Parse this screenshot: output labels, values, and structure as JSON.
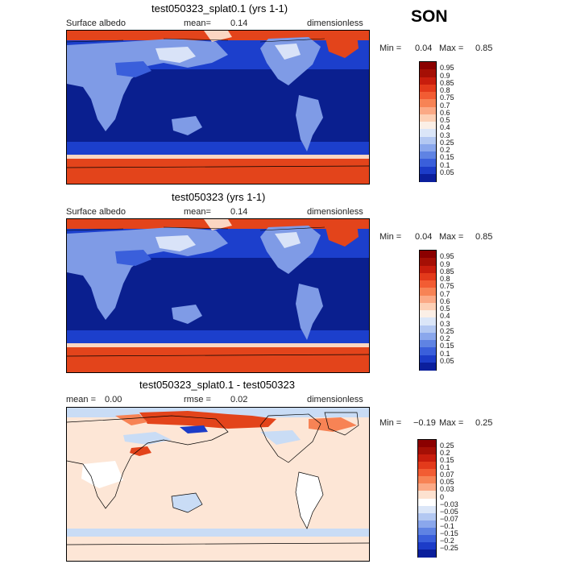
{
  "season": "SON",
  "colors": {
    "ocean_dark": "#0a1f8f",
    "ocean_mid": "#1c3fcc",
    "land_light": "#7f9be6",
    "ice_red": "#e3441b",
    "ice_pale": "#fbd6c2",
    "diff_bg": "#fde6d6",
    "diff_blue": "#c9dcf5"
  },
  "panels": [
    {
      "id": "panel-1",
      "title": "test050323_splat0.1 (yrs 1-1)",
      "left_label": "Surface albedo",
      "mean_label": "mean=",
      "mean_value": "0.14",
      "units": "dimensionless",
      "min_label": "Min =",
      "min_value": "0.04",
      "max_label": "Max =",
      "max_value": "0.85",
      "colorbar": {
        "ticks": [
          "0.95",
          "0.9",
          "0.85",
          "0.8",
          "0.75",
          "0.7",
          "0.6",
          "0.5",
          "0.4",
          "0.3",
          "0.25",
          "0.2",
          "0.15",
          "0.1",
          "0.05"
        ],
        "colors": [
          "#8b0000",
          "#a50f05",
          "#c81d0d",
          "#e33a1b",
          "#f25c33",
          "#f78355",
          "#fba985",
          "#fdd0b5",
          "#fbefe6",
          "#dbe6f8",
          "#b3c8f2",
          "#8aa7ec",
          "#5f83e3",
          "#3a5fdb",
          "#1c3cc8",
          "#0b1f9c"
        ]
      }
    },
    {
      "id": "panel-2",
      "title": "test050323 (yrs 1-1)",
      "left_label": "Surface albedo",
      "mean_label": "mean=",
      "mean_value": "0.14",
      "units": "dimensionless",
      "min_label": "Min =",
      "min_value": "0.04",
      "max_label": "Max =",
      "max_value": "0.85",
      "colorbar": {
        "ticks": [
          "0.95",
          "0.9",
          "0.85",
          "0.8",
          "0.75",
          "0.7",
          "0.6",
          "0.5",
          "0.4",
          "0.3",
          "0.25",
          "0.2",
          "0.15",
          "0.1",
          "0.05"
        ],
        "colors": [
          "#8b0000",
          "#a50f05",
          "#c81d0d",
          "#e33a1b",
          "#f25c33",
          "#f78355",
          "#fba985",
          "#fdd0b5",
          "#fbefe6",
          "#dbe6f8",
          "#b3c8f2",
          "#8aa7ec",
          "#5f83e3",
          "#3a5fdb",
          "#1c3cc8",
          "#0b1f9c"
        ]
      }
    },
    {
      "id": "panel-3",
      "title": "test050323_splat0.1 - test050323",
      "left_label": "mean =",
      "left_value": "0.00",
      "mean_label": "rmse =",
      "mean_value": "0.02",
      "units": "dimensionless",
      "min_label": "Min =",
      "min_value": "−0.19",
      "max_label": "Max =",
      "max_value": "0.25",
      "colorbar": {
        "ticks": [
          "0.25",
          "0.2",
          "0.15",
          "0.1",
          "0.07",
          "0.05",
          "0.03",
          "0",
          "−0.03",
          "−0.05",
          "−0.07",
          "−0.1",
          "−0.15",
          "−0.2",
          "−0.25"
        ],
        "colors": [
          "#8b0000",
          "#a50f05",
          "#c81d0d",
          "#e33a1b",
          "#f25c33",
          "#f78355",
          "#fba985",
          "#fde2d0",
          "#ffffff",
          "#dbe6f8",
          "#b3c8f2",
          "#8aa7ec",
          "#5f83e3",
          "#3a5fdb",
          "#1c3cc8",
          "#0b1f9c"
        ]
      }
    }
  ]
}
